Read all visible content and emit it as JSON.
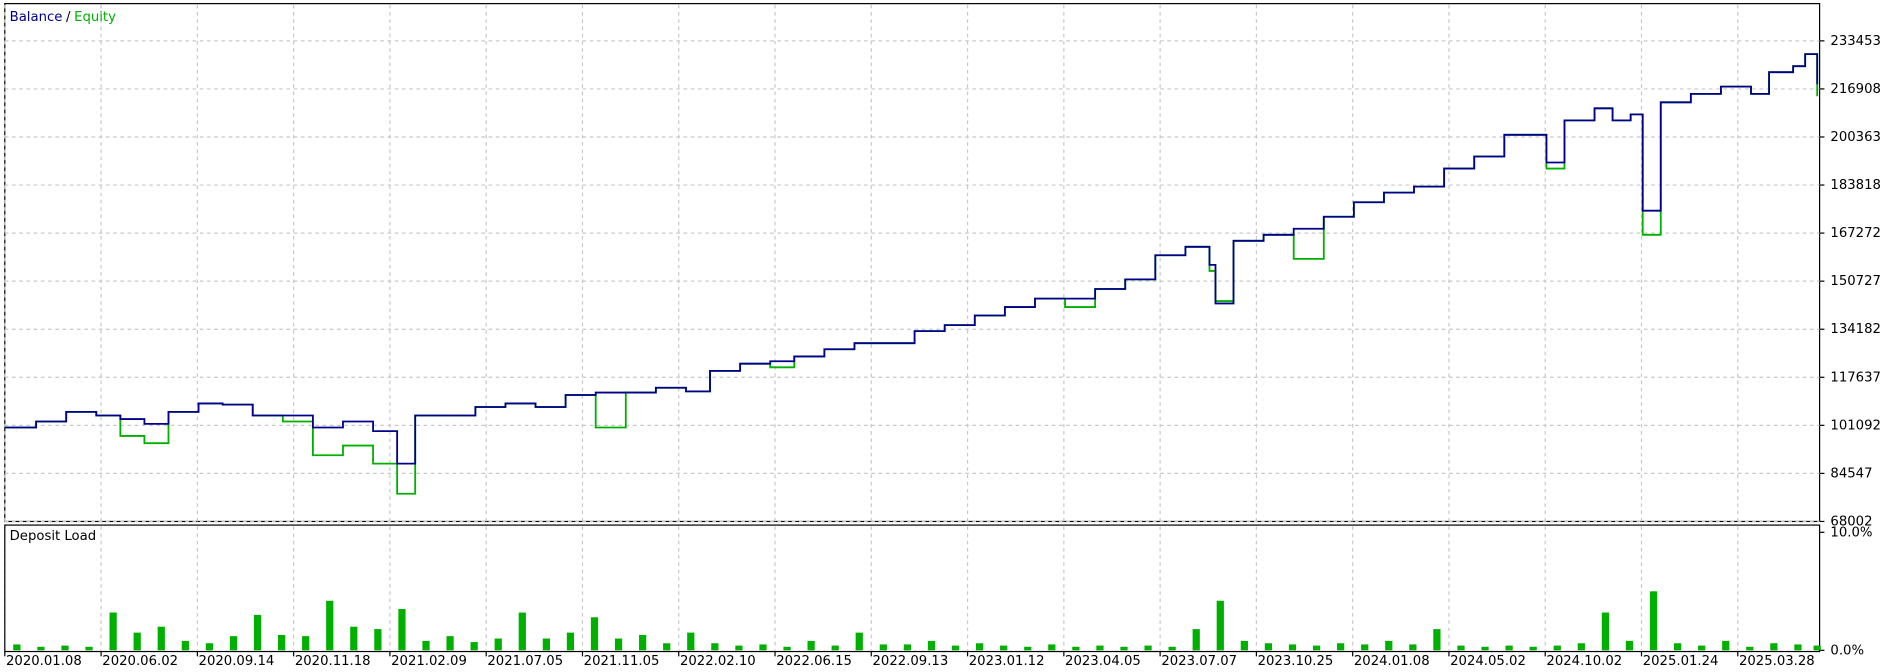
{
  "chart_data": [
    {
      "type": "line",
      "step": true,
      "legend_separator": "/",
      "grid": true,
      "x": [
        0,
        26,
        51,
        76,
        96,
        116,
        136,
        161,
        181,
        206,
        231,
        256,
        281,
        306,
        326,
        341,
        366,
        391,
        416,
        441,
        466,
        491,
        516,
        541,
        566,
        586,
        611,
        636,
        656,
        681,
        706,
        731,
        756,
        781,
        806,
        831,
        856,
        881,
        906,
        931,
        956,
        981,
        1001,
        1006,
        1021,
        1046,
        1071,
        1096,
        1121,
        1146,
        1171,
        1196,
        1221,
        1246,
        1266,
        1281,
        1296,
        1321,
        1336,
        1351,
        1361,
        1376,
        1401,
        1426,
        1451,
        1466,
        1486,
        1496,
        1506
      ],
      "xlim": [
        0,
        1508
      ],
      "xticks": [
        {
          "value": 0,
          "label": "2020.01.08"
        },
        {
          "value": 80,
          "label": "2020.06.02"
        },
        {
          "value": 160,
          "label": "2020.09.14"
        },
        {
          "value": 240,
          "label": "2020.11.18"
        },
        {
          "value": 320,
          "label": "2021.02.09"
        },
        {
          "value": 400,
          "label": "2021.07.05"
        },
        {
          "value": 480,
          "label": "2021.11.05"
        },
        {
          "value": 560,
          "label": "2022.02.10"
        },
        {
          "value": 640,
          "label": "2022.06.15"
        },
        {
          "value": 720,
          "label": "2022.09.13"
        },
        {
          "value": 800,
          "label": "2023.01.12"
        },
        {
          "value": 880,
          "label": "2023.04.05"
        },
        {
          "value": 960,
          "label": "2023.07.07"
        },
        {
          "value": 1040,
          "label": "2023.10.25"
        },
        {
          "value": 1120,
          "label": "2024.01.08"
        },
        {
          "value": 1200,
          "label": "2024.05.02"
        },
        {
          "value": 1280,
          "label": "2024.10.02"
        },
        {
          "value": 1360,
          "label": "2025.01.24"
        },
        {
          "value": 1440,
          "label": "2025.03.28"
        }
      ],
      "ylim": [
        68002,
        245862
      ],
      "yticks": [
        68002,
        84547,
        101092,
        117637,
        134182,
        150727,
        167272,
        183818,
        200363,
        216908,
        233453
      ],
      "series": [
        {
          "name": "Balance",
          "color": "#00008b",
          "values": [
            100345,
            102419,
            105736,
            104492,
            103248,
            101589,
            105736,
            108639,
            108224,
            104492,
            104492,
            100345,
            102419,
            99102,
            87906,
            104492,
            104492,
            107395,
            108639,
            107395,
            111541,
            112371,
            112371,
            114029,
            112785,
            119835,
            122322,
            123152,
            124810,
            127298,
            129372,
            129372,
            133518,
            135592,
            138909,
            141811,
            144714,
            144714,
            148031,
            151349,
            159642,
            162544,
            156325,
            143055,
            164618,
            166691,
            168764,
            172911,
            177887,
            181204,
            183277,
            189497,
            193644,
            201108,
            201108,
            191571,
            206084,
            210230,
            206084,
            208157,
            174984,
            212304,
            215206,
            217694,
            215206,
            222670,
            224743,
            228890,
            218524
          ]
        },
        {
          "name": "Equity",
          "color": "#00b000",
          "values": [
            100345,
            102419,
            105736,
            104492,
            97443,
            94955,
            105736,
            108639,
            108224,
            104492,
            102419,
            90808,
            94125,
            87906,
            77539,
            104492,
            104492,
            107395,
            108639,
            107395,
            111541,
            100345,
            112371,
            114029,
            112785,
            119835,
            122322,
            121078,
            124810,
            127298,
            129372,
            129372,
            133518,
            135592,
            138909,
            141811,
            144714,
            141811,
            148031,
            151349,
            159642,
            162544,
            154251,
            143884,
            164618,
            166691,
            158402,
            172911,
            177887,
            181204,
            183277,
            189497,
            193644,
            201108,
            201108,
            189497,
            206084,
            210230,
            206084,
            208157,
            166691,
            212304,
            215206,
            217694,
            215206,
            222670,
            224743,
            228890,
            214377
          ]
        }
      ]
    },
    {
      "type": "bar",
      "title": "Deposit Load",
      "color": "#00b000",
      "x": [
        10,
        30,
        50,
        70,
        90,
        110,
        130,
        150,
        170,
        190,
        210,
        230,
        250,
        270,
        290,
        310,
        330,
        350,
        370,
        390,
        410,
        430,
        450,
        470,
        490,
        510,
        530,
        550,
        570,
        590,
        610,
        630,
        650,
        670,
        690,
        710,
        730,
        750,
        770,
        790,
        810,
        830,
        850,
        870,
        890,
        910,
        930,
        950,
        970,
        990,
        1010,
        1030,
        1050,
        1070,
        1090,
        1110,
        1130,
        1150,
        1170,
        1190,
        1210,
        1230,
        1250,
        1270,
        1290,
        1310,
        1330,
        1350,
        1370,
        1390,
        1410,
        1430,
        1450,
        1470,
        1490,
        1506
      ],
      "values": [
        0.5,
        0.3,
        0.4,
        0.3,
        3.2,
        1.5,
        2.0,
        0.8,
        0.6,
        1.2,
        3.0,
        1.3,
        1.2,
        4.2,
        2.0,
        1.8,
        3.5,
        0.8,
        1.2,
        0.7,
        1.0,
        3.2,
        1.0,
        1.5,
        2.8,
        1.0,
        1.3,
        0.6,
        1.5,
        0.6,
        0.4,
        0.5,
        0.3,
        0.8,
        0.4,
        1.5,
        0.5,
        0.5,
        0.8,
        0.4,
        0.6,
        0.4,
        0.3,
        0.5,
        0.3,
        0.4,
        0.3,
        0.4,
        0.3,
        1.8,
        4.2,
        0.8,
        0.6,
        0.5,
        0.4,
        0.6,
        0.5,
        0.8,
        0.5,
        1.8,
        0.4,
        0.3,
        0.4,
        0.3,
        0.4,
        0.6,
        3.2,
        0.8,
        5.0,
        0.6,
        0.4,
        0.8,
        0.3,
        0.6,
        0.5,
        0.4
      ],
      "xlim": [
        0,
        1508
      ],
      "ylim": [
        0,
        10
      ],
      "yticks": [
        {
          "value": 0,
          "label": "0.0%"
        },
        {
          "value": 10,
          "label": "10.0%"
        }
      ]
    }
  ]
}
